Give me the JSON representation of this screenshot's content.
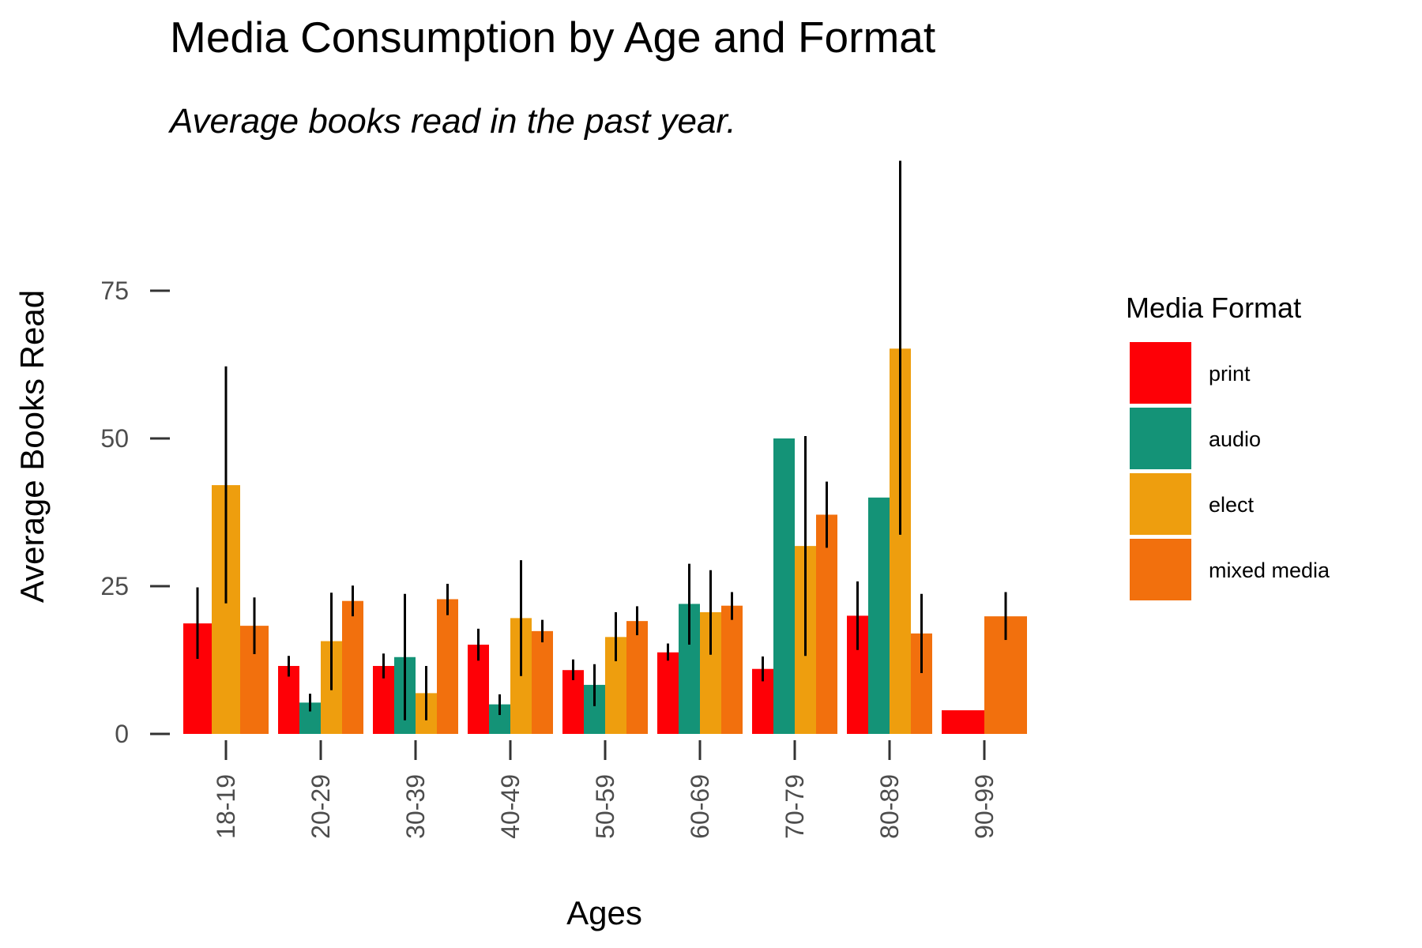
{
  "chart_data": {
    "type": "bar",
    "title": "Media Consumption by Age and Format",
    "subtitle": "Average books read in the past year.",
    "xlabel": "Ages",
    "ylabel": "Average Books Read",
    "ylim": [
      0,
      97
    ],
    "yticks": [
      0,
      25,
      50,
      75
    ],
    "grid": false,
    "legend": {
      "title": "Media Format",
      "position": "right"
    },
    "categories": [
      "18-19",
      "20-29",
      "30-39",
      "40-49",
      "50-59",
      "60-69",
      "70-79",
      "80-89",
      "90-99"
    ],
    "series": [
      {
        "name": "print",
        "color": "#fe0006",
        "values": [
          18.7,
          11.5,
          11.5,
          15.1,
          10.8,
          13.8,
          11.0,
          20.0,
          4.0
        ],
        "err_low": [
          12.7,
          9.7,
          9.4,
          12.4,
          9.1,
          12.4,
          8.9,
          14.2,
          null
        ],
        "err_high": [
          24.8,
          13.2,
          13.6,
          17.8,
          12.6,
          15.3,
          13.1,
          25.8,
          null
        ]
      },
      {
        "name": "audio",
        "color": "#149377",
        "values": [
          null,
          5.3,
          13.0,
          5.0,
          8.3,
          22.0,
          50.0,
          40.0,
          null
        ],
        "err_low": [
          null,
          3.8,
          2.3,
          3.2,
          4.7,
          15.1,
          null,
          null,
          null
        ],
        "err_high": [
          null,
          6.8,
          23.7,
          6.7,
          11.8,
          28.8,
          null,
          null,
          null
        ]
      },
      {
        "name": "elect",
        "color": "#ee9e0e",
        "values": [
          42.1,
          15.7,
          6.9,
          19.6,
          16.4,
          20.6,
          31.8,
          65.2,
          null
        ],
        "err_low": [
          22.1,
          7.4,
          2.3,
          9.8,
          12.3,
          13.4,
          13.2,
          33.7,
          null
        ],
        "err_high": [
          62.2,
          23.9,
          11.5,
          29.4,
          20.6,
          27.7,
          50.4,
          97.0,
          null
        ]
      },
      {
        "name": "mixed media",
        "color": "#f2700d",
        "values": [
          18.3,
          22.5,
          22.8,
          17.4,
          19.1,
          21.7,
          37.1,
          17.0,
          19.9
        ],
        "err_low": [
          13.5,
          19.9,
          20.1,
          15.5,
          16.7,
          19.3,
          31.5,
          10.3,
          15.9
        ],
        "err_high": [
          23.1,
          25.1,
          25.4,
          19.3,
          21.6,
          24.0,
          42.7,
          23.7,
          24.0
        ]
      }
    ]
  }
}
